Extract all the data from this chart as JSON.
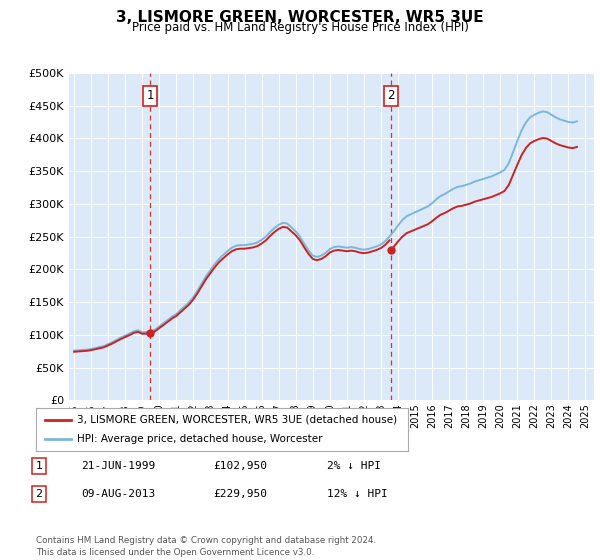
{
  "title": "3, LISMORE GREEN, WORCESTER, WR5 3UE",
  "subtitle": "Price paid vs. HM Land Registry's House Price Index (HPI)",
  "background_color": "#dce9f8",
  "ylim": [
    0,
    500000
  ],
  "yticks": [
    0,
    50000,
    100000,
    150000,
    200000,
    250000,
    300000,
    350000,
    400000,
    450000,
    500000
  ],
  "ytick_labels": [
    "£0",
    "£50K",
    "£100K",
    "£150K",
    "£200K",
    "£250K",
    "£300K",
    "£350K",
    "£400K",
    "£450K",
    "£500K"
  ],
  "xlim_start": 1994.7,
  "xlim_end": 2025.5,
  "xticks": [
    1995,
    1996,
    1997,
    1998,
    1999,
    2000,
    2001,
    2002,
    2003,
    2004,
    2005,
    2006,
    2007,
    2008,
    2009,
    2010,
    2011,
    2012,
    2013,
    2014,
    2015,
    2016,
    2017,
    2018,
    2019,
    2020,
    2021,
    2022,
    2023,
    2024,
    2025
  ],
  "hpi_color": "#7ab8d9",
  "price_color": "#cc2222",
  "vline_color": "#cc2222",
  "sale1_x": 1999.47,
  "sale1_y": 102950,
  "sale2_x": 2013.6,
  "sale2_y": 229950,
  "sale1_label": "1",
  "sale2_label": "2",
  "sale1_date": "21-JUN-1999",
  "sale2_date": "09-AUG-2013",
  "sale1_price": "£102,950",
  "sale2_price": "£229,950",
  "sale1_note": "2% ↓ HPI",
  "sale2_note": "12% ↓ HPI",
  "legend_label1": "3, LISMORE GREEN, WORCESTER, WR5 3UE (detached house)",
  "legend_label2": "HPI: Average price, detached house, Worcester",
  "footer": "Contains HM Land Registry data © Crown copyright and database right 2024.\nThis data is licensed under the Open Government Licence v3.0.",
  "hpi_data_x": [
    1995.0,
    1995.25,
    1995.5,
    1995.75,
    1996.0,
    1996.25,
    1996.5,
    1996.75,
    1997.0,
    1997.25,
    1997.5,
    1997.75,
    1998.0,
    1998.25,
    1998.5,
    1998.75,
    1999.0,
    1999.25,
    1999.5,
    1999.75,
    2000.0,
    2000.25,
    2000.5,
    2000.75,
    2001.0,
    2001.25,
    2001.5,
    2001.75,
    2002.0,
    2002.25,
    2002.5,
    2002.75,
    2003.0,
    2003.25,
    2003.5,
    2003.75,
    2004.0,
    2004.25,
    2004.5,
    2004.75,
    2005.0,
    2005.25,
    2005.5,
    2005.75,
    2006.0,
    2006.25,
    2006.5,
    2006.75,
    2007.0,
    2007.25,
    2007.5,
    2007.75,
    2008.0,
    2008.25,
    2008.5,
    2008.75,
    2009.0,
    2009.25,
    2009.5,
    2009.75,
    2010.0,
    2010.25,
    2010.5,
    2010.75,
    2011.0,
    2011.25,
    2011.5,
    2011.75,
    2012.0,
    2012.25,
    2012.5,
    2012.75,
    2013.0,
    2013.25,
    2013.5,
    2013.75,
    2014.0,
    2014.25,
    2014.5,
    2014.75,
    2015.0,
    2015.25,
    2015.5,
    2015.75,
    2016.0,
    2016.25,
    2016.5,
    2016.75,
    2017.0,
    2017.25,
    2017.5,
    2017.75,
    2018.0,
    2018.25,
    2018.5,
    2018.75,
    2019.0,
    2019.25,
    2019.5,
    2019.75,
    2020.0,
    2020.25,
    2020.5,
    2020.75,
    2021.0,
    2021.25,
    2021.5,
    2021.75,
    2022.0,
    2022.25,
    2022.5,
    2022.75,
    2023.0,
    2023.25,
    2023.5,
    2023.75,
    2024.0,
    2024.25,
    2024.5
  ],
  "hpi_data_y": [
    76000,
    76500,
    77000,
    77500,
    78500,
    80000,
    81500,
    83000,
    86000,
    89000,
    92500,
    96000,
    99000,
    102000,
    105500,
    107000,
    104000,
    104500,
    105500,
    108000,
    113000,
    118000,
    123000,
    128000,
    132000,
    138000,
    144000,
    150000,
    158000,
    168000,
    179000,
    190000,
    199000,
    208000,
    216000,
    222000,
    228000,
    233000,
    236000,
    237000,
    237000,
    238000,
    239000,
    241000,
    245000,
    250000,
    257000,
    263000,
    268000,
    271000,
    270000,
    264000,
    258000,
    250000,
    239000,
    229000,
    221000,
    219000,
    221000,
    225000,
    231000,
    234000,
    235000,
    234000,
    233000,
    234000,
    233000,
    231000,
    230000,
    231000,
    233000,
    235000,
    238000,
    243000,
    250000,
    258000,
    267000,
    275000,
    281000,
    284000,
    287000,
    290000,
    293000,
    296000,
    301000,
    307000,
    312000,
    315000,
    319000,
    323000,
    326000,
    327000,
    329000,
    331000,
    334000,
    336000,
    338000,
    340000,
    342000,
    345000,
    348000,
    352000,
    362000,
    379000,
    396000,
    412000,
    424000,
    432000,
    436000,
    439000,
    441000,
    440000,
    436000,
    432000,
    429000,
    427000,
    425000,
    424000,
    426000
  ]
}
